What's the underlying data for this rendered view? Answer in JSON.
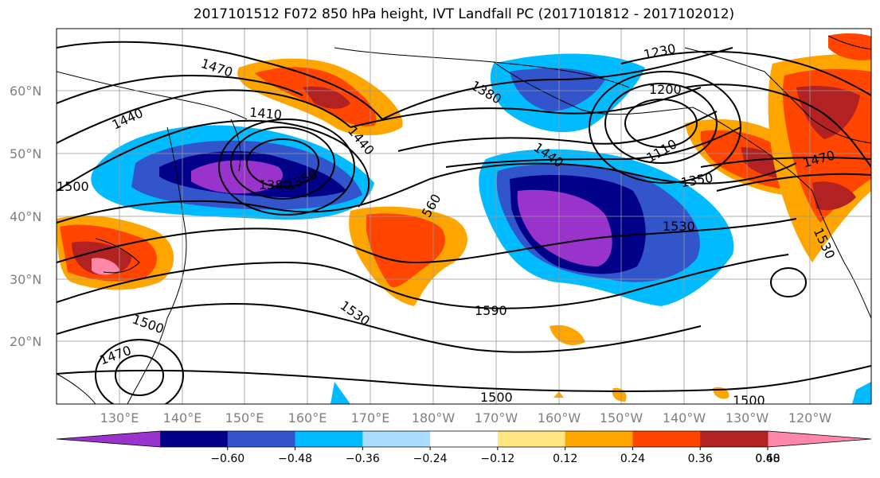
{
  "title": "2017101512 F072 850 hPa height, IVT Landfall PC (2017101812 - 2017102012)",
  "lat_labels": [
    "60°N",
    "50°N",
    "40°N",
    "30°N",
    "20°N"
  ],
  "lon_labels": [
    "130°E",
    "140°E",
    "150°E",
    "160°E",
    "170°E",
    "180°W",
    "170°W",
    "160°W",
    "150°W",
    "140°W",
    "130°W",
    "120°W"
  ],
  "contour_labels": {
    "c1470_a": "1470",
    "c1440_a": "1440",
    "c1500_a": "1500",
    "c1410": "1410",
    "c1440_b": "1440",
    "c1350_a": "1350",
    "c1380_a": "1380",
    "c560": "560",
    "c1380_b": "1380",
    "c1230": "1230",
    "c1200": "1200",
    "c1110": "1110",
    "c1440_c": "1440",
    "c1350_b": "1350",
    "c1530_a": "1530",
    "c1470_b": "1470",
    "c1590": "1590",
    "c1530_b": "1530",
    "c1500_b": "1500",
    "c1470_c": "1470",
    "c1500_c": "1500",
    "c1500_d": "1500",
    "c1530_c": "1530"
  },
  "colorbar": {
    "ticks": [
      "−0.60",
      "−0.48",
      "−0.36",
      "−0.24",
      "−0.12",
      "0.12",
      "0.24",
      "0.36",
      "0.48",
      "0.60"
    ],
    "colors": [
      "#9933cc",
      "#000088",
      "#3355cc",
      "#00bbff",
      "#aaddff",
      "#ffffff",
      "#ffe680",
      "#ffa500",
      "#ff4500",
      "#b22222",
      "#ff88aa"
    ]
  }
}
